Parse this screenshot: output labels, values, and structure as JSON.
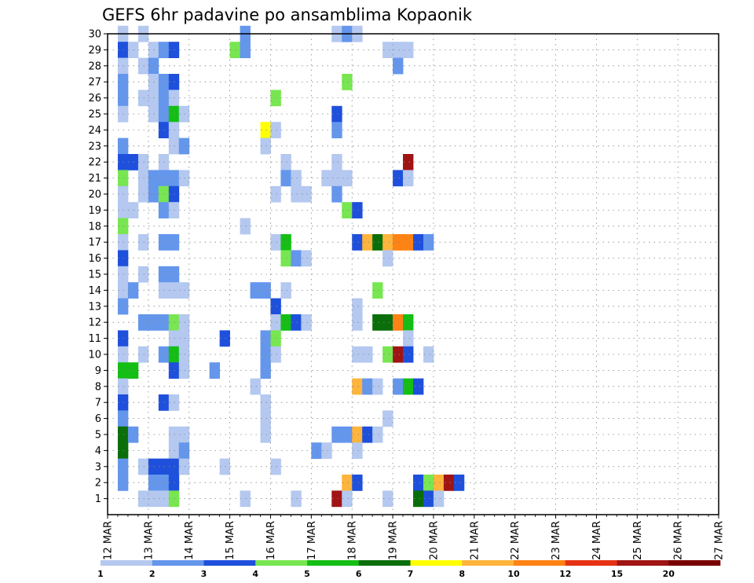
{
  "chart_data": {
    "type": "heatmap",
    "title": "GEFS 6hr padavine po ansamblima Kopaonik",
    "y_tick_labels": [
      "1",
      "2",
      "3",
      "4",
      "5",
      "6",
      "7",
      "8",
      "9",
      "10",
      "11",
      "12",
      "13",
      "14",
      "15",
      "16",
      "17",
      "18",
      "19",
      "20",
      "21",
      "22",
      "23",
      "24",
      "25",
      "26",
      "27",
      "28",
      "29",
      "30"
    ],
    "x_tick_labels": [
      "12 MAR",
      "13 MAR",
      "14 MAR",
      "15 MAR",
      "16 MAR",
      "17 MAR",
      "18 MAR",
      "19 MAR",
      "20 MAR",
      "21 MAR",
      "22 MAR",
      "23 MAR",
      "24 MAR",
      "25 MAR",
      "26 MAR",
      "27 MAR"
    ],
    "x_range": [
      0,
      60
    ],
    "y_range": [
      0,
      30
    ],
    "grid": true,
    "colorbar": {
      "labels": [
        "1",
        "2",
        "3",
        "4",
        "5",
        "6",
        "7",
        "8",
        "10",
        "12",
        "15",
        "20"
      ],
      "colors": [
        "#b4c8f0",
        "#6496ec",
        "#1e50dc",
        "#78e650",
        "#14be14",
        "#0a6e0a",
        "#ffff00",
        "#ffb43c",
        "#ff8214",
        "#e63214",
        "#a01414",
        "#780000"
      ],
      "placement": "bottom"
    },
    "cells": [
      [
        1,
        30,
        1
      ],
      [
        3,
        30,
        1
      ],
      [
        13,
        30,
        2
      ],
      [
        22,
        30,
        1
      ],
      [
        23,
        30,
        2
      ],
      [
        24,
        30,
        1
      ],
      [
        1,
        29,
        3
      ],
      [
        2,
        29,
        1
      ],
      [
        4,
        29,
        1
      ],
      [
        5,
        29,
        2
      ],
      [
        6,
        29,
        3
      ],
      [
        12,
        29,
        4
      ],
      [
        13,
        29,
        2
      ],
      [
        27,
        29,
        1
      ],
      [
        28,
        29,
        1
      ],
      [
        29,
        29,
        1
      ],
      [
        1,
        28,
        1
      ],
      [
        3,
        28,
        1
      ],
      [
        4,
        28,
        2
      ],
      [
        28,
        28,
        2
      ],
      [
        1,
        27,
        2
      ],
      [
        4,
        27,
        1
      ],
      [
        5,
        27,
        2
      ],
      [
        6,
        27,
        3
      ],
      [
        23,
        27,
        4
      ],
      [
        1,
        26,
        2
      ],
      [
        3,
        26,
        1
      ],
      [
        4,
        26,
        1
      ],
      [
        5,
        26,
        2
      ],
      [
        6,
        26,
        1
      ],
      [
        16,
        26,
        4
      ],
      [
        1,
        25,
        1
      ],
      [
        4,
        25,
        1
      ],
      [
        5,
        25,
        2
      ],
      [
        6,
        25,
        5
      ],
      [
        7,
        25,
        1
      ],
      [
        22,
        25,
        3
      ],
      [
        5,
        24,
        3
      ],
      [
        6,
        24,
        1
      ],
      [
        15,
        24,
        7
      ],
      [
        16,
        24,
        1
      ],
      [
        22,
        24,
        2
      ],
      [
        1,
        23,
        2
      ],
      [
        6,
        23,
        1
      ],
      [
        7,
        23,
        2
      ],
      [
        15,
        23,
        1
      ],
      [
        1,
        22,
        3
      ],
      [
        2,
        22,
        3
      ],
      [
        3,
        22,
        1
      ],
      [
        5,
        22,
        1
      ],
      [
        17,
        22,
        1
      ],
      [
        22,
        22,
        1
      ],
      [
        29,
        22,
        11
      ],
      [
        1,
        21,
        4
      ],
      [
        3,
        21,
        1
      ],
      [
        4,
        21,
        2
      ],
      [
        5,
        21,
        2
      ],
      [
        6,
        21,
        2
      ],
      [
        7,
        21,
        1
      ],
      [
        17,
        21,
        2
      ],
      [
        18,
        21,
        1
      ],
      [
        21,
        21,
        1
      ],
      [
        22,
        21,
        1
      ],
      [
        23,
        21,
        1
      ],
      [
        28,
        21,
        3
      ],
      [
        29,
        21,
        1
      ],
      [
        1,
        20,
        1
      ],
      [
        3,
        20,
        1
      ],
      [
        4,
        20,
        2
      ],
      [
        5,
        20,
        4
      ],
      [
        6,
        20,
        3
      ],
      [
        16,
        20,
        1
      ],
      [
        18,
        20,
        1
      ],
      [
        19,
        20,
        1
      ],
      [
        22,
        20,
        2
      ],
      [
        1,
        19,
        1
      ],
      [
        2,
        19,
        1
      ],
      [
        5,
        19,
        2
      ],
      [
        6,
        19,
        1
      ],
      [
        23,
        19,
        4
      ],
      [
        24,
        19,
        3
      ],
      [
        1,
        18,
        4
      ],
      [
        13,
        18,
        1
      ],
      [
        1,
        17,
        1
      ],
      [
        3,
        17,
        1
      ],
      [
        5,
        17,
        2
      ],
      [
        6,
        17,
        2
      ],
      [
        16,
        17,
        1
      ],
      [
        17,
        17,
        5
      ],
      [
        24,
        17,
        3
      ],
      [
        25,
        17,
        8
      ],
      [
        26,
        17,
        6
      ],
      [
        27,
        17,
        8
      ],
      [
        28,
        17,
        9
      ],
      [
        29,
        17,
        9
      ],
      [
        30,
        17,
        3
      ],
      [
        31,
        17,
        2
      ],
      [
        1,
        16,
        3
      ],
      [
        17,
        16,
        4
      ],
      [
        18,
        16,
        2
      ],
      [
        19,
        16,
        1
      ],
      [
        27,
        16,
        1
      ],
      [
        1,
        15,
        1
      ],
      [
        3,
        15,
        1
      ],
      [
        5,
        15,
        2
      ],
      [
        6,
        15,
        2
      ],
      [
        1,
        14,
        1
      ],
      [
        2,
        14,
        2
      ],
      [
        5,
        14,
        1
      ],
      [
        6,
        14,
        1
      ],
      [
        7,
        14,
        1
      ],
      [
        14,
        14,
        2
      ],
      [
        15,
        14,
        2
      ],
      [
        17,
        14,
        1
      ],
      [
        26,
        14,
        4
      ],
      [
        1,
        13,
        2
      ],
      [
        16,
        13,
        3
      ],
      [
        24,
        13,
        1
      ],
      [
        3,
        12,
        2
      ],
      [
        4,
        12,
        2
      ],
      [
        5,
        12,
        2
      ],
      [
        6,
        12,
        4
      ],
      [
        7,
        12,
        1
      ],
      [
        16,
        12,
        1
      ],
      [
        17,
        12,
        5
      ],
      [
        18,
        12,
        3
      ],
      [
        19,
        12,
        1
      ],
      [
        24,
        12,
        1
      ],
      [
        26,
        12,
        6
      ],
      [
        27,
        12,
        6
      ],
      [
        28,
        12,
        9
      ],
      [
        29,
        12,
        5
      ],
      [
        29,
        11,
        1
      ],
      [
        1,
        11,
        3
      ],
      [
        6,
        11,
        1
      ],
      [
        7,
        11,
        1
      ],
      [
        11,
        11,
        3
      ],
      [
        15,
        11,
        2
      ],
      [
        16,
        11,
        4
      ],
      [
        1,
        10,
        1
      ],
      [
        3,
        10,
        1
      ],
      [
        5,
        10,
        2
      ],
      [
        6,
        10,
        5
      ],
      [
        7,
        10,
        1
      ],
      [
        15,
        10,
        2
      ],
      [
        16,
        10,
        1
      ],
      [
        24,
        10,
        1
      ],
      [
        25,
        10,
        1
      ],
      [
        27,
        10,
        4
      ],
      [
        28,
        10,
        11
      ],
      [
        29,
        10,
        3
      ],
      [
        31,
        10,
        1
      ],
      [
        1,
        9,
        5
      ],
      [
        2,
        9,
        5
      ],
      [
        6,
        9,
        3
      ],
      [
        7,
        9,
        1
      ],
      [
        10,
        9,
        2
      ],
      [
        15,
        9,
        2
      ],
      [
        1,
        8,
        1
      ],
      [
        14,
        8,
        1
      ],
      [
        24,
        8,
        8
      ],
      [
        25,
        8,
        2
      ],
      [
        26,
        8,
        1
      ],
      [
        28,
        8,
        2
      ],
      [
        29,
        8,
        5
      ],
      [
        30,
        8,
        3
      ],
      [
        1,
        7,
        3
      ],
      [
        5,
        7,
        3
      ],
      [
        6,
        7,
        1
      ],
      [
        15,
        7,
        1
      ],
      [
        1,
        6,
        2
      ],
      [
        15,
        6,
        1
      ],
      [
        27,
        6,
        1
      ],
      [
        1,
        5,
        6
      ],
      [
        2,
        5,
        2
      ],
      [
        6,
        5,
        1
      ],
      [
        7,
        5,
        1
      ],
      [
        15,
        5,
        1
      ],
      [
        22,
        5,
        2
      ],
      [
        23,
        5,
        2
      ],
      [
        24,
        5,
        8
      ],
      [
        25,
        5,
        3
      ],
      [
        26,
        5,
        1
      ],
      [
        1,
        4,
        6
      ],
      [
        6,
        4,
        1
      ],
      [
        7,
        4,
        2
      ],
      [
        20,
        4,
        2
      ],
      [
        21,
        4,
        1
      ],
      [
        24,
        4,
        1
      ],
      [
        1,
        3,
        2
      ],
      [
        3,
        3,
        1
      ],
      [
        4,
        3,
        3
      ],
      [
        5,
        3,
        3
      ],
      [
        6,
        3,
        3
      ],
      [
        7,
        3,
        1
      ],
      [
        11,
        3,
        1
      ],
      [
        16,
        3,
        1
      ],
      [
        1,
        2,
        2
      ],
      [
        4,
        2,
        2
      ],
      [
        5,
        2,
        2
      ],
      [
        6,
        2,
        3
      ],
      [
        23,
        2,
        8
      ],
      [
        24,
        2,
        3
      ],
      [
        30,
        2,
        3
      ],
      [
        31,
        2,
        4
      ],
      [
        32,
        2,
        8
      ],
      [
        33,
        2,
        11
      ],
      [
        34,
        2,
        3
      ],
      [
        3,
        1,
        1
      ],
      [
        4,
        1,
        1
      ],
      [
        5,
        1,
        1
      ],
      [
        6,
        1,
        4
      ],
      [
        13,
        1,
        1
      ],
      [
        18,
        1,
        1
      ],
      [
        22,
        1,
        11
      ],
      [
        23,
        1,
        1
      ],
      [
        27,
        1,
        1
      ],
      [
        30,
        1,
        6
      ],
      [
        31,
        1,
        3
      ],
      [
        32,
        1,
        1
      ]
    ]
  }
}
